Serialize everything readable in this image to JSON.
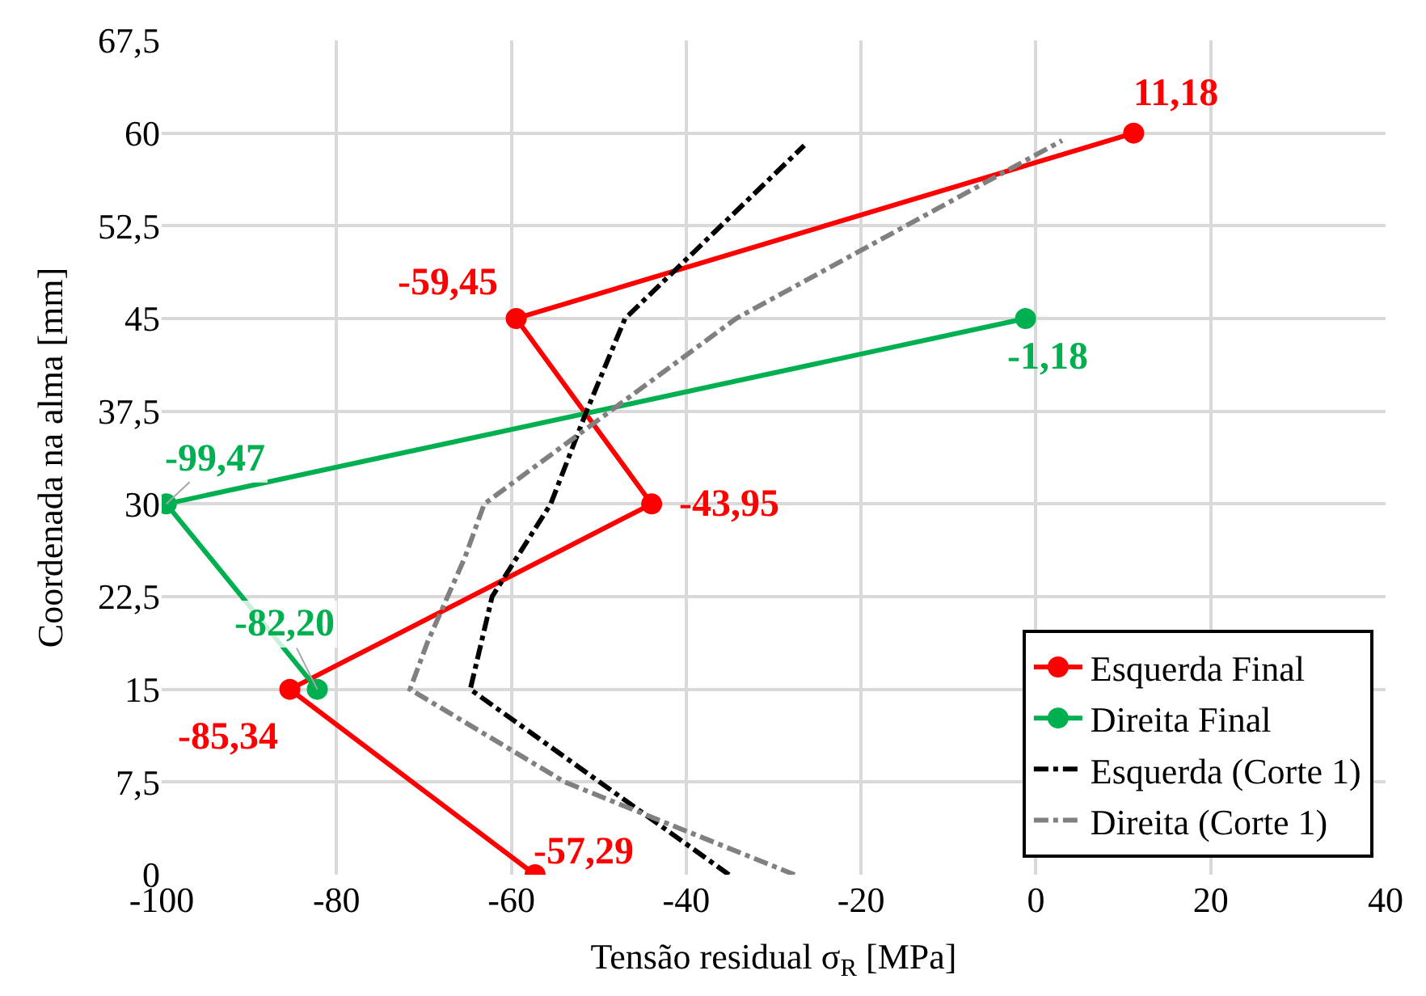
{
  "chart_data": {
    "type": "line",
    "xlabel": "Tensão residual σ$_{R}$ [MPa]",
    "ylabel": "Coordenada na alma [mm]",
    "xlim": [
      -100,
      40
    ],
    "xticks": [
      -100,
      -80,
      -60,
      -40,
      -20,
      0,
      20,
      40
    ],
    "ylim": [
      0,
      67.5
    ],
    "yticks": [
      0,
      {
        "value": 7.5,
        "label": "7,5"
      },
      15,
      {
        "value": 22.5,
        "label": "22,5"
      },
      30,
      {
        "value": 37.5,
        "label": "37,5"
      },
      45,
      {
        "value": 52.5,
        "label": "52,5"
      },
      60,
      {
        "value": 67.5,
        "label": "67,5"
      }
    ],
    "grid": true,
    "legend": "bottom right",
    "series": [
      {
        "name": "Esquerda Final",
        "color": "#ff0000",
        "marker": "circle",
        "line_style": "solid",
        "x": [
          -57.29,
          -85.34,
          -43.95,
          -59.45,
          11.18
        ],
        "values": [
          0,
          15,
          30,
          45,
          60
        ]
      },
      {
        "name": "Direita Final",
        "color": "#00b050",
        "marker": "circle",
        "line_style": "solid",
        "x": [
          -82.2,
          -99.47,
          -1.18
        ],
        "values": [
          15,
          30,
          45
        ]
      },
      {
        "name": "Esquerda (Corte 1)",
        "color": "#000000",
        "marker": "none",
        "line_style": "dashdot",
        "x": [
          -35.1,
          -49.9,
          -64.7,
          -62.2,
          -55.5,
          -51.4,
          -47,
          -26.5
        ],
        "values": [
          0,
          7.5,
          15,
          22.5,
          30,
          37.5,
          45,
          59
        ]
      },
      {
        "name": "Direita (Corte 1)",
        "color": "#808080",
        "marker": "none",
        "line_style": "dashdot",
        "x": [
          -27.6,
          -53.9,
          -71.6,
          -69.6,
          -65.3,
          -63.1,
          -48.7,
          -34.3,
          3
        ],
        "values": [
          0,
          7.5,
          15,
          18.8,
          25.7,
          30,
          37.5,
          45,
          59.4
        ]
      }
    ],
    "annotations": [
      {
        "text": "-57,29",
        "x": -57.29,
        "y": 0
      },
      {
        "text": "-85,34",
        "x": -85.34,
        "y": 15
      },
      {
        "text": "-43,95",
        "x": -43.95,
        "y": 30
      },
      {
        "text": "-59,45",
        "x": -59.45,
        "y": 45
      },
      {
        "text": "11,18",
        "x": 11.18,
        "y": 60
      },
      {
        "text": "-82,20",
        "x": -82.2,
        "y": 15
      },
      {
        "text": "-99,47",
        "x": -99.47,
        "y": 30
      },
      {
        "text": "-1,18",
        "x": -1.18,
        "y": 45
      }
    ]
  }
}
